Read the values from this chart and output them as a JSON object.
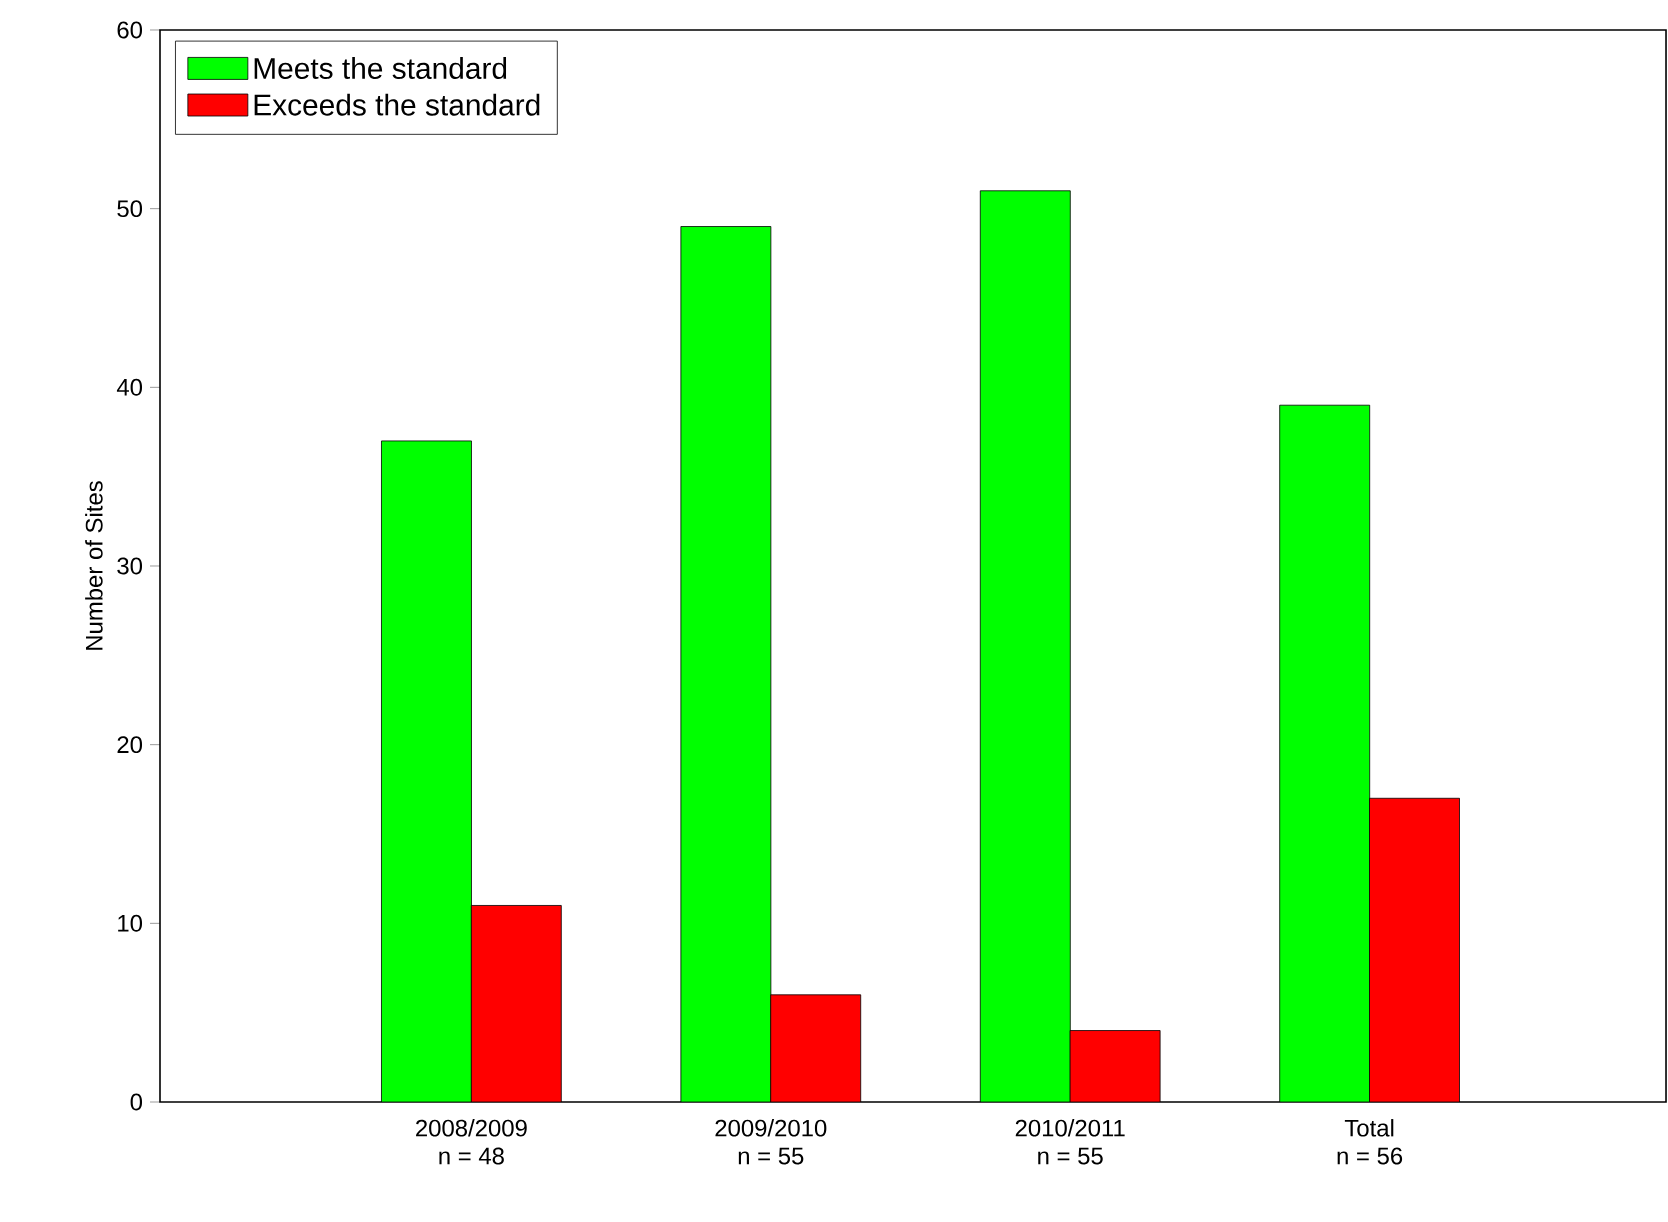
{
  "chart_data": {
    "type": "bar",
    "categories": [
      "2008/2009",
      "2009/2010",
      "2010/2011",
      "Total"
    ],
    "series": [
      {
        "name": "Meets the standard",
        "color": "#00ff00",
        "values": [
          37,
          49,
          51,
          39
        ]
      },
      {
        "name": "Exceeds the standard",
        "color": "#ff0000",
        "values": [
          11,
          6,
          4,
          17
        ]
      }
    ],
    "ylabel": "Number of Sites",
    "ylim": [
      0,
      60
    ],
    "yticks": [
      0,
      10,
      20,
      30,
      40,
      50,
      60
    ],
    "annotations": [
      "n = 48",
      "n = 55",
      "n = 55",
      "n = 56"
    ],
    "legend": "top left"
  }
}
